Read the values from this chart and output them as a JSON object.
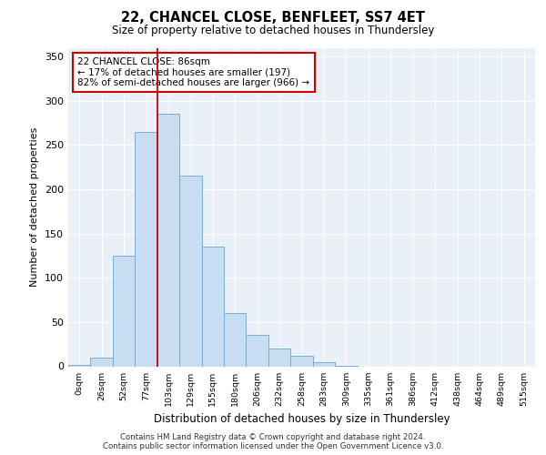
{
  "title1": "22, CHANCEL CLOSE, BENFLEET, SS7 4ET",
  "title2": "Size of property relative to detached houses in Thundersley",
  "xlabel": "Distribution of detached houses by size in Thundersley",
  "ylabel": "Number of detached properties",
  "categories": [
    "0sqm",
    "26sqm",
    "52sqm",
    "77sqm",
    "103sqm",
    "129sqm",
    "155sqm",
    "180sqm",
    "206sqm",
    "232sqm",
    "258sqm",
    "283sqm",
    "309sqm",
    "335sqm",
    "361sqm",
    "386sqm",
    "412sqm",
    "438sqm",
    "464sqm",
    "489sqm",
    "515sqm"
  ],
  "bar_heights": [
    2,
    10,
    125,
    265,
    285,
    215,
    135,
    60,
    36,
    20,
    12,
    5,
    1,
    0,
    0,
    0,
    0,
    0,
    0,
    0,
    0
  ],
  "bar_color": "#c9ddf2",
  "bar_edge_color": "#7badd4",
  "vline_color": "#cc0000",
  "vline_pos": 3.5,
  "annotation_text": "22 CHANCEL CLOSE: 86sqm\n← 17% of detached houses are smaller (197)\n82% of semi-detached houses are larger (966) →",
  "annotation_box_color": "#ffffff",
  "annotation_box_edge_color": "#cc0000",
  "ylim": [
    0,
    360
  ],
  "yticks": [
    0,
    50,
    100,
    150,
    200,
    250,
    300,
    350
  ],
  "footnote1": "Contains HM Land Registry data © Crown copyright and database right 2024.",
  "footnote2": "Contains public sector information licensed under the Open Government Licence v3.0.",
  "bg_color": "#eaf0f8",
  "grid_color": "#ffffff"
}
